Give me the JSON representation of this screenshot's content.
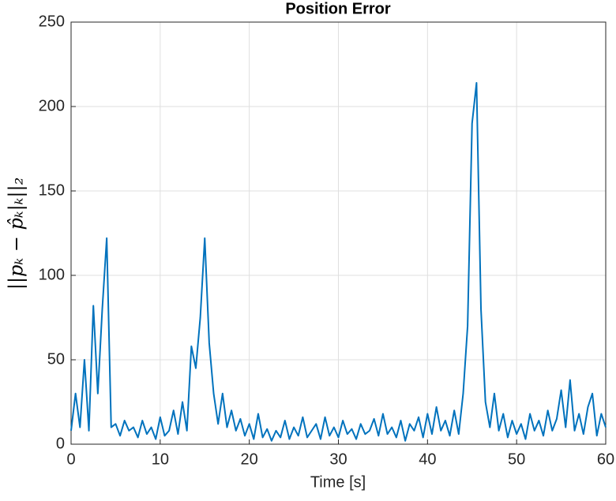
{
  "chart_data": {
    "type": "line",
    "title": "Position Error",
    "xlabel": "Time [s]",
    "ylabel": "||pₖ − p̂ₖ|ₖ||₂",
    "xlim": [
      0,
      60
    ],
    "xticks": [
      0,
      10,
      20,
      30,
      40,
      50,
      60
    ],
    "ylim": [
      0,
      250
    ],
    "yticks": [
      0,
      50,
      100,
      150,
      200,
      250
    ],
    "grid": true,
    "x": [
      0,
      0.5,
      1,
      1.5,
      2,
      2.5,
      3,
      3.5,
      4,
      4.5,
      5,
      5.5,
      6,
      6.5,
      7,
      7.5,
      8,
      8.5,
      9,
      9.5,
      10,
      10.5,
      11,
      11.5,
      12,
      12.5,
      13,
      13.5,
      14,
      14.5,
      15,
      15.5,
      16,
      16.5,
      17,
      17.5,
      18,
      18.5,
      19,
      19.5,
      20,
      20.5,
      21,
      21.5,
      22,
      22.5,
      23,
      23.5,
      24,
      24.5,
      25,
      25.5,
      26,
      26.5,
      27,
      27.5,
      28,
      28.5,
      29,
      29.5,
      30,
      30.5,
      31,
      31.5,
      32,
      32.5,
      33,
      33.5,
      34,
      34.5,
      35,
      35.5,
      36,
      36.5,
      37,
      37.5,
      38,
      38.5,
      39,
      39.5,
      40,
      40.5,
      41,
      41.5,
      42,
      42.5,
      43,
      43.5,
      44,
      44.5,
      45,
      45.5,
      46,
      46.5,
      47,
      47.5,
      48,
      48.5,
      49,
      49.5,
      50,
      50.5,
      51,
      51.5,
      52,
      52.5,
      53,
      53.5,
      54,
      54.5,
      55,
      55.5,
      56,
      56.5,
      57,
      57.5,
      58,
      58.5,
      59,
      59.5,
      60
    ],
    "series": [
      {
        "color": "#0072bd",
        "values": [
          8,
          30,
          10,
          50,
          8,
          82,
          30,
          80,
          122,
          10,
          12,
          5,
          14,
          8,
          10,
          4,
          14,
          6,
          10,
          3,
          16,
          5,
          8,
          20,
          6,
          25,
          8,
          58,
          45,
          75,
          122,
          60,
          30,
          12,
          30,
          10,
          20,
          8,
          15,
          5,
          12,
          3,
          18,
          4,
          9,
          2,
          8,
          4,
          14,
          3,
          10,
          5,
          16,
          4,
          8,
          12,
          3,
          16,
          5,
          10,
          4,
          14,
          6,
          9,
          3,
          12,
          6,
          8,
          15,
          5,
          18,
          6,
          10,
          4,
          14,
          2,
          12,
          8,
          16,
          4,
          18,
          6,
          22,
          8,
          14,
          5,
          20,
          6,
          30,
          70,
          190,
          214,
          80,
          25,
          10,
          30,
          8,
          18,
          4,
          14,
          6,
          12,
          3,
          18,
          8,
          14,
          5,
          20,
          8,
          15,
          32,
          10,
          38,
          8,
          18,
          6,
          22,
          30,
          5,
          18,
          10
        ]
      }
    ]
  }
}
